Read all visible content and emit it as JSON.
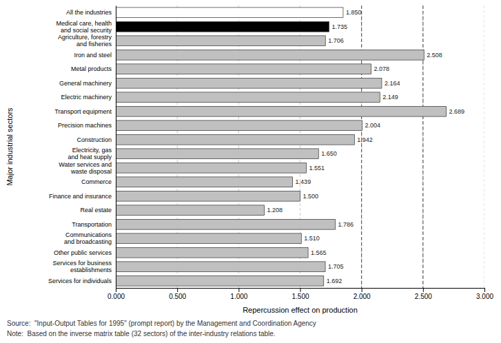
{
  "chart_data": {
    "type": "bar",
    "orientation": "horizontal",
    "categories": [
      "All the industries",
      "Medical care, health\nand social security",
      "Agriculture, forestry\nand fisheries",
      "Iron and steel",
      "Metal products",
      "General machinery",
      "Electric machinery",
      "Transport equipment",
      "Precision machines",
      "Construction",
      "Electricity, gas\nand heat supply",
      "Water services and\nwaste disposal",
      "Commerce",
      "Finance and insurance",
      "Real estate",
      "Transportation",
      "Communications\nand broadcasting",
      "Other public services",
      "Services for business\nestablishments",
      "Services for individuals"
    ],
    "values": [
      1.85,
      1.735,
      1.706,
      2.508,
      2.078,
      2.164,
      2.149,
      2.689,
      2.004,
      1.942,
      1.65,
      1.551,
      1.439,
      1.5,
      1.208,
      1.786,
      1.51,
      1.565,
      1.705,
      1.692
    ],
    "value_labels": [
      "1.850",
      "1.735",
      "1.706",
      "2.508",
      "2.078",
      "2.164",
      "2.149",
      "2.689",
      "2.004",
      "1.942",
      "1.650",
      "1.551",
      "1.439",
      "1.500",
      "1.208",
      "1.786",
      "1.510",
      "1.565",
      "1.705",
      "1.692"
    ],
    "data_labels": true,
    "colors": [
      "#ffffff",
      "#000000",
      "#c0c0c0",
      "#c0c0c0",
      "#c0c0c0",
      "#c0c0c0",
      "#c0c0c0",
      "#c0c0c0",
      "#c0c0c0",
      "#c0c0c0",
      "#c0c0c0",
      "#c0c0c0",
      "#c0c0c0",
      "#c0c0c0",
      "#c0c0c0",
      "#c0c0c0",
      "#c0c0c0",
      "#c0c0c0",
      "#c0c0c0",
      "#c0c0c0"
    ],
    "xlabel": "Repercussion effect on production",
    "ylabel": "Major industrial sectors",
    "xlim": [
      0.0,
      3.0
    ],
    "xticks": [
      {
        "value": 0.0,
        "label": "0.000"
      },
      {
        "value": 0.5,
        "label": "0.500"
      },
      {
        "value": 1.0,
        "label": "1.000"
      },
      {
        "value": 1.5,
        "label": "1.500"
      },
      {
        "value": 2.0,
        "label": "2.000"
      },
      {
        "value": 2.5,
        "label": "2.500"
      },
      {
        "value": 3.0,
        "label": "3.000"
      }
    ],
    "grid": true,
    "reference_lines": [
      2.0,
      2.5
    ],
    "annotations": [
      "Source:  \"Input-Output Tables for 1995\" (prompt report) by the Management and Coordination Agency",
      "Note:  Based on the inverse matrix table (32 sectors) of the inter-industry relations table."
    ]
  }
}
